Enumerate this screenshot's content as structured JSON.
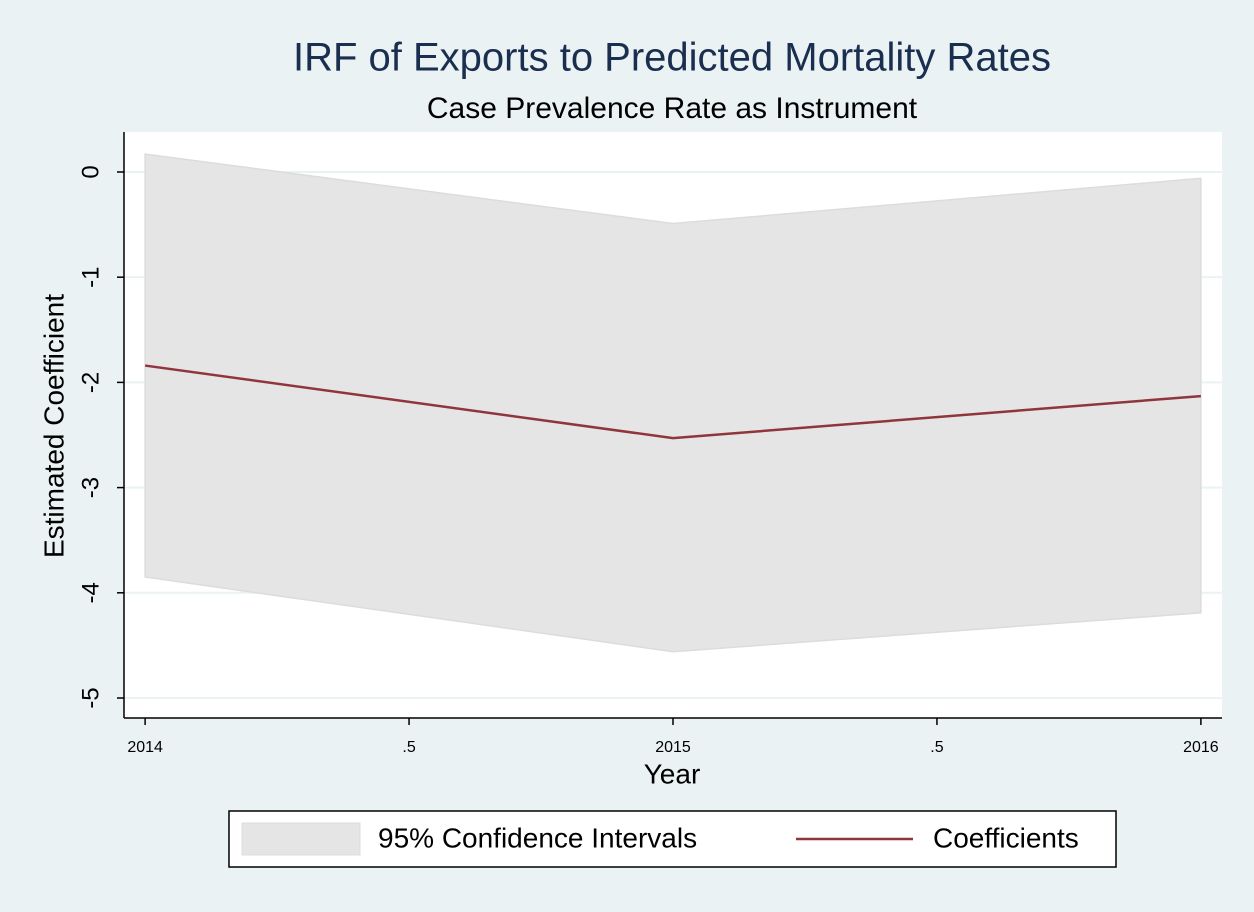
{
  "chart_data": {
    "type": "line",
    "title": "IRF of Exports to Predicted Mortality Rates",
    "subtitle": "Case Prevalence Rate as Instrument",
    "x_label": "Year",
    "y_label": "Estimated Coefficient",
    "x": [
      2014,
      2015,
      2016
    ],
    "xlim": [
      2013.96,
      2016.04
    ],
    "xticks": [
      2014,
      {
        "value": 2014.5,
        "label": ".5"
      },
      2015,
      {
        "value": 2015.5,
        "label": ".5"
      },
      2016
    ],
    "ylim": [
      -5.19,
      0.38
    ],
    "yticks": [
      0,
      -1,
      -2,
      -3,
      -4,
      -5
    ],
    "grid": true,
    "band": {
      "name": "95% Confidence Intervals",
      "color": "#e5e5e5",
      "upper": [
        0.17,
        -0.49,
        -0.06
      ],
      "lower": [
        -3.85,
        -4.56,
        -4.19
      ]
    },
    "series": [
      {
        "name": "Coefficients",
        "color": "#90353b",
        "values": [
          -1.84,
          -2.53,
          -2.13
        ]
      }
    ],
    "legend_position": "bottom"
  }
}
